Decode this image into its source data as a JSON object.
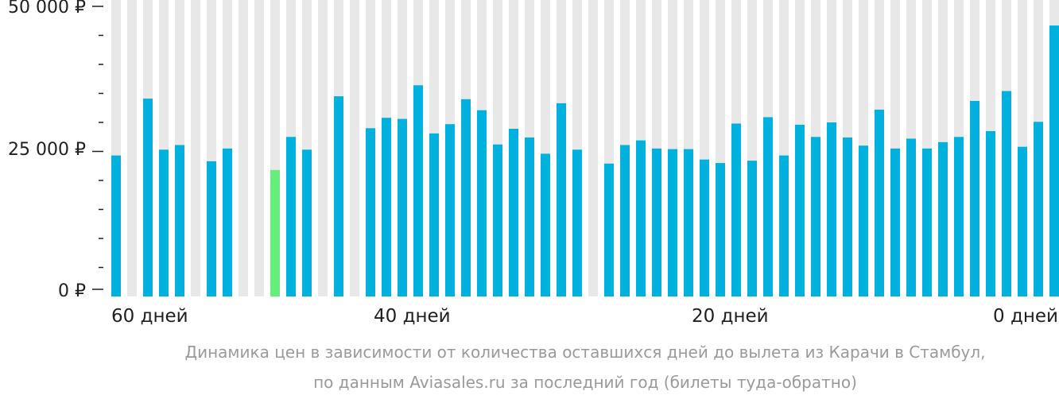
{
  "chart_data": {
    "type": "bar",
    "y_axis": {
      "min": 0,
      "max": 50000,
      "labeled_ticks": [
        {
          "value": 50000,
          "label": "50 000 ₽"
        },
        {
          "value": 25000,
          "label": "25 000 ₽"
        },
        {
          "value": 0,
          "label": "0 ₽"
        }
      ],
      "minor_tick_step": 5000
    },
    "x_axis": {
      "days_max": 59,
      "tick_labels": [
        {
          "day": 59,
          "label": "60 дней"
        },
        {
          "day": 40,
          "label": "40 дней"
        },
        {
          "day": 20,
          "label": "20 дней"
        },
        {
          "day": 0,
          "label": "0 дней"
        }
      ]
    },
    "caption_lines": [
      "Динамика цен в зависимости от количества оставшихся дней до вылета из Карачи в Стамбул,",
      "по данным Aviasales.ru за последний год (билеты туда-обратно)"
    ],
    "colors": {
      "bar": "#00b1dd",
      "highlight": "#66ee7c",
      "background_column": "#e8e8e8",
      "axis": "#1f1f1f",
      "caption": "#9a9a9a"
    },
    "highlight_day": 49,
    "values": [
      24300,
      null,
      34100,
      25300,
      26100,
      null,
      23300,
      25500,
      null,
      null,
      21800,
      27500,
      25300,
      null,
      34500,
      null,
      29000,
      30800,
      30600,
      36400,
      28100,
      29700,
      34000,
      32100,
      26200,
      28900,
      27400,
      24600,
      33300,
      25300,
      null,
      22900,
      26100,
      26900,
      25500,
      25400,
      25400,
      23600,
      23000,
      29800,
      23400,
      30900,
      24300,
      29600,
      27500,
      30000,
      27400,
      26000,
      32200,
      25500,
      27200,
      25500,
      26600,
      27500,
      33700,
      28500,
      35400,
      25800,
      30100,
      46700
    ]
  }
}
